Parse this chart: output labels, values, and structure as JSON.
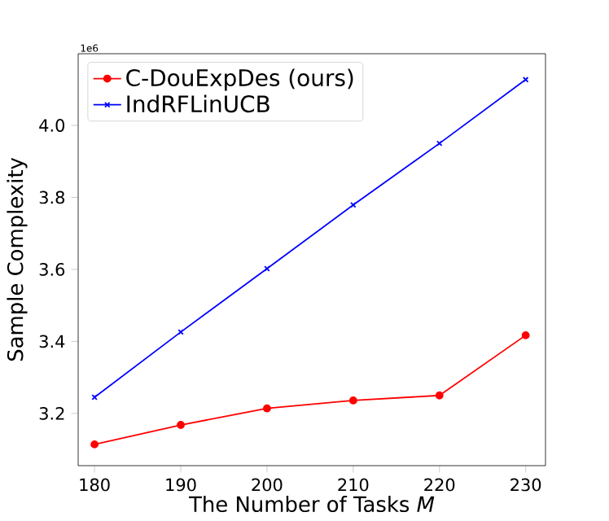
{
  "chart_data": {
    "type": "line",
    "xlabel": "The Number of Tasks *M*",
    "ylabel": "Sample Complexity",
    "annotations": [
      "1e6"
    ],
    "x": [
      180,
      190,
      200,
      210,
      220,
      230
    ],
    "series": [
      {
        "name": "C-DouExpDes (ours)",
        "color": "#ff0000",
        "marker": "circle",
        "values": [
          3.114,
          3.168,
          3.214,
          3.236,
          3.25,
          3.417
        ]
      },
      {
        "name": "IndRFLinUCB",
        "color": "#0000ff",
        "marker": "cross",
        "values": [
          3.245,
          3.426,
          3.602,
          3.779,
          3.95,
          4.127
        ]
      }
    ],
    "xlim": [
      178.1,
      232.3
    ],
    "xticks": [
      180,
      190,
      200,
      210,
      220,
      230
    ],
    "ylim": [
      3.055,
      4.199
    ],
    "yticks": [
      3.2,
      3.4,
      3.6,
      3.8,
      {
        "value": 4.0,
        "label": "4.0"
      }
    ],
    "legend": "top left",
    "grid": false,
    "line_style": "solid"
  }
}
